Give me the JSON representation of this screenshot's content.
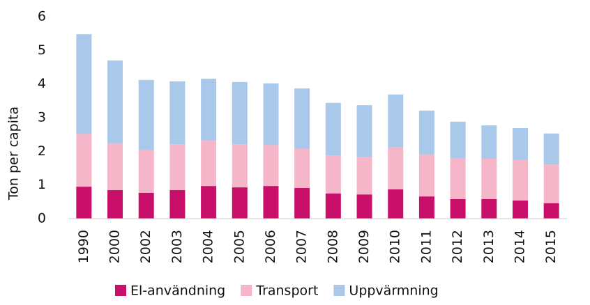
{
  "chart_data": {
    "type": "stacked_bar",
    "y_label": "Ton per capita",
    "categories": [
      "1990",
      "2000",
      "2002",
      "2003",
      "2004",
      "2005",
      "2006",
      "2007",
      "2008",
      "2009",
      "2010",
      "2011",
      "2012",
      "2013",
      "2014",
      "2015"
    ],
    "series": [
      {
        "name": "El-användning",
        "color": "#c8106a",
        "values": [
          0.95,
          0.85,
          0.77,
          0.85,
          0.97,
          0.93,
          0.97,
          0.91,
          0.75,
          0.72,
          0.87,
          0.66,
          0.58,
          0.58,
          0.54,
          0.46
        ]
      },
      {
        "name": "Transport",
        "color": "#f4b6c8",
        "values": [
          1.57,
          1.38,
          1.26,
          1.36,
          1.35,
          1.28,
          1.22,
          1.16,
          1.13,
          1.12,
          1.26,
          1.24,
          1.22,
          1.2,
          1.2,
          1.15
        ]
      },
      {
        "name": "Uppvärmning",
        "color": "#a9c8ea",
        "values": [
          2.96,
          2.47,
          2.09,
          1.87,
          1.84,
          1.85,
          1.83,
          1.8,
          1.56,
          1.53,
          1.56,
          1.31,
          1.08,
          0.99,
          0.95,
          0.92
        ]
      }
    ],
    "ylim": [
      0,
      6
    ],
    "yticks": [
      0,
      1,
      2,
      3,
      4,
      5,
      6
    ],
    "grid": false,
    "legend": "bottom"
  }
}
